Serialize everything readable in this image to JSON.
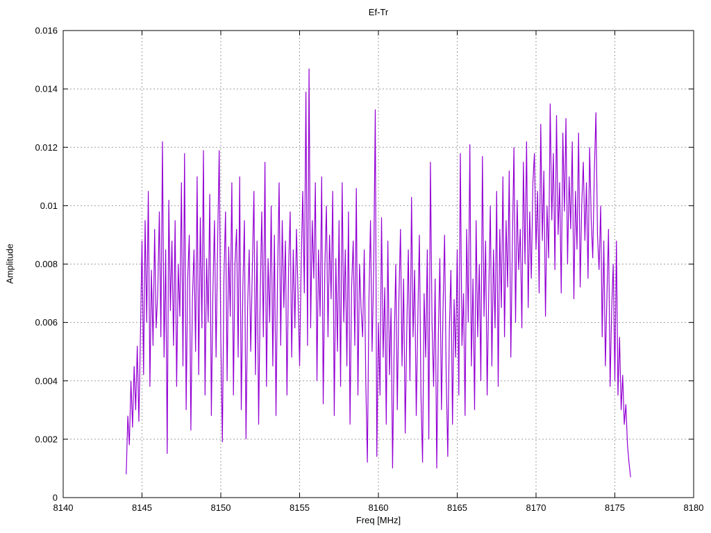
{
  "title": "Ef-Tr",
  "colors": {
    "line": "#9400d3",
    "grid": "#9e9e9e",
    "axis": "#000000",
    "background": "#ffffff"
  },
  "chart_data": {
    "type": "line",
    "title": "Ef-Tr",
    "xlabel": "Freq [MHz]",
    "ylabel": "Amplitude",
    "xlim": [
      8140,
      8180
    ],
    "ylim": [
      0,
      0.016
    ],
    "grid": true,
    "legend": "none",
    "xticks": [
      8140,
      8145,
      8150,
      8155,
      8160,
      8165,
      8170,
      8175,
      8180
    ],
    "xtick_labels": [
      "8140",
      "8145",
      "8150",
      "8155",
      "8160",
      "8165",
      "8170",
      "8175",
      "8180"
    ],
    "yticks": [
      0,
      0.002,
      0.004,
      0.006,
      0.008,
      0.01,
      0.012,
      0.014,
      0.016
    ],
    "ytick_labels": [
      "0",
      "0.002",
      "0.004",
      "0.006",
      "0.008",
      "0.01",
      "0.012",
      "0.014",
      "0.016"
    ],
    "series": [
      {
        "name": "Ef-Tr",
        "color": "#9400d3",
        "x_start": 8144.0,
        "x_step": 0.1,
        "value_scale": 0.0001,
        "values": [
          8,
          28,
          18,
          40,
          24,
          45,
          30,
          52,
          26,
          55,
          88,
          42,
          95,
          60,
          105,
          38,
          78,
          52,
          92,
          58,
          70,
          98,
          55,
          122,
          48,
          85,
          15,
          102,
          64,
          88,
          52,
          95,
          38,
          80,
          62,
          108,
          45,
          118,
          30,
          75,
          90,
          23,
          68,
          85,
          50,
          110,
          42,
          96,
          58,
          119,
          35,
          82,
          60,
          104,
          28,
          70,
          95,
          48,
          88,
          119,
          55,
          19,
          75,
          98,
          40,
          86,
          62,
          108,
          35,
          80,
          92,
          48,
          110,
          30,
          72,
          95,
          20,
          65,
          85,
          50,
          78,
          105,
          42,
          88,
          25,
          70,
          98,
          55,
          115,
          38,
          82,
          60,
          100,
          45,
          90,
          28,
          75,
          108,
          52,
          95,
          65,
          88,
          35,
          78,
          98,
          48,
          85,
          58,
          92,
          70,
          45,
          80,
          105,
          70,
          139,
          52,
          147,
          58,
          95,
          75,
          108,
          40,
          85,
          62,
          110,
          32,
          78,
          100,
          55,
          90,
          68,
          105,
          28,
          82,
          50,
          95,
          38,
          108,
          60,
          85,
          45,
          98,
          25,
          72,
          88,
          52,
          106,
          35,
          80,
          65,
          55,
          85,
          40,
          12,
          68,
          95,
          50,
          78,
          133,
          14,
          60,
          35,
          96,
          48,
          72,
          25,
          88,
          42,
          65,
          10,
          52,
          80,
          30,
          68,
          92,
          45,
          75,
          22,
          58,
          85,
          40,
          103,
          55,
          78,
          28,
          62,
          90,
          35,
          12,
          70,
          48,
          85,
          20,
          115,
          60,
          38,
          75,
          10,
          55,
          82,
          30,
          65,
          90,
          42,
          14,
          58,
          78,
          25,
          68,
          48,
          85,
          35,
          118,
          52,
          70,
          28,
          92,
          60,
          121,
          45,
          75,
          30,
          95,
          55,
          80,
          40,
          117,
          62,
          88,
          35,
          70,
          100,
          45,
          85,
          58,
          105,
          38,
          92,
          65,
          110,
          55,
          95,
          72,
          112,
          48,
          88,
          120,
          60,
          102,
          78,
          92,
          58,
          115,
          80,
          122,
          65,
          98,
          75,
          108,
          118,
          85,
          105,
          70,
          128,
          88,
          112,
          62,
          100,
          82,
          135,
          95,
          118,
          78,
          131,
          90,
          108,
          70,
          125,
          98,
          130,
          80,
          110,
          92,
          122,
          68,
          105,
          85,
          125,
          72,
          100,
          115,
          88,
          108,
          75,
          120,
          95,
          82,
          112,
          132,
          90,
          78,
          100,
          55,
          88,
          45,
          70,
          92,
          38,
          65,
          80,
          40,
          88,
          35,
          55,
          30,
          42,
          25,
          32,
          18,
          12,
          7
        ]
      }
    ]
  }
}
